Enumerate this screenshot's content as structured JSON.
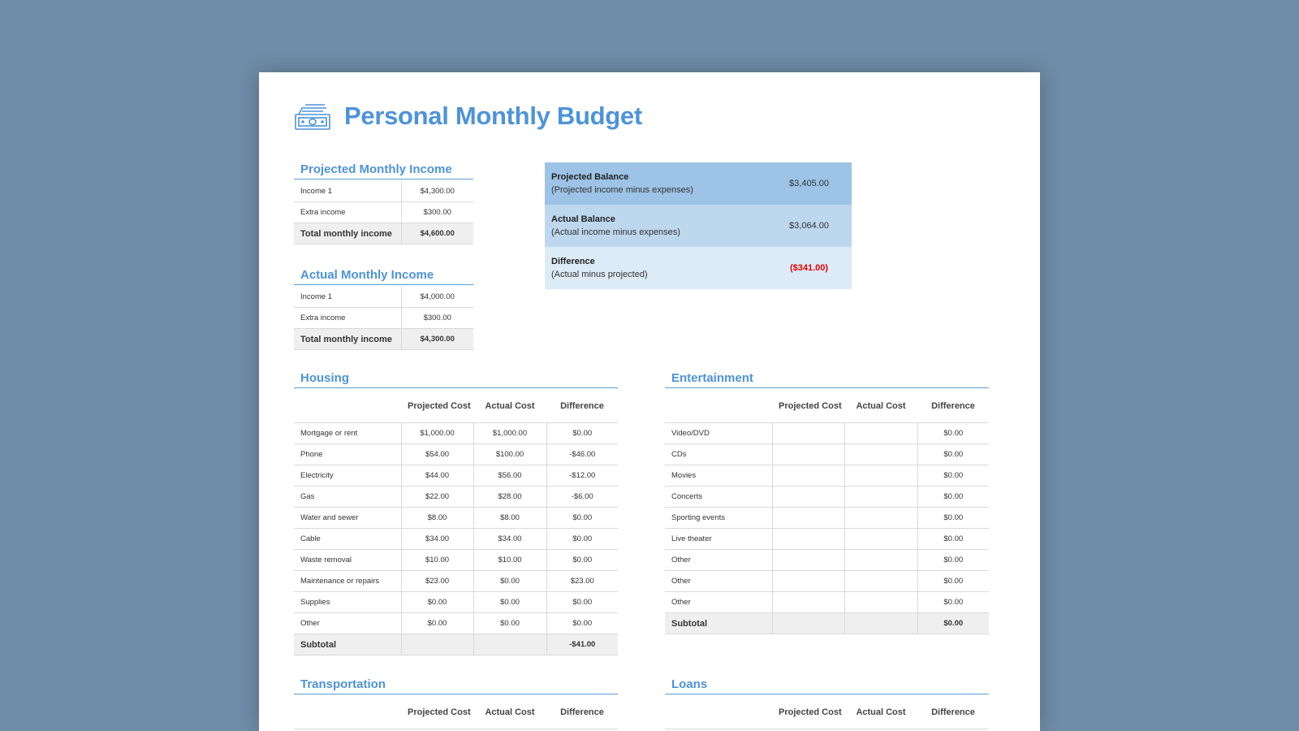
{
  "title": "Personal Monthly Budget",
  "income_tables": [
    {
      "title": "Projected Monthly Income",
      "rows": [
        [
          "Income 1",
          "$4,300.00"
        ],
        [
          "Extra income",
          "$300.00"
        ],
        [
          "Total monthly income",
          "$4,600.00"
        ]
      ]
    },
    {
      "title": "Actual Monthly Income",
      "rows": [
        [
          "Income 1",
          "$4,000.00"
        ],
        [
          "Extra income",
          "$300.00"
        ],
        [
          "Total monthly income",
          "$4,300.00"
        ]
      ]
    }
  ],
  "balance": [
    {
      "label": "Projected Balance",
      "note": "(Projected income minus expenses)",
      "value": "$3,405.00"
    },
    {
      "label": "Actual Balance",
      "note": "(Actual income minus expenses)",
      "value": "$3,064.00"
    },
    {
      "label": "Difference",
      "note": "(Actual minus projected)",
      "value": "($341.00)"
    }
  ],
  "expense_tables": [
    {
      "title": "Housing",
      "headers": [
        null,
        "Projected Cost",
        "Actual Cost",
        "Difference"
      ],
      "rows": [
        [
          "Mortgage or rent",
          "$1,000.00",
          "$1,000.00",
          "$0.00"
        ],
        [
          "Phone",
          "$54.00",
          "$100.00",
          "-$46.00"
        ],
        [
          "Electricity",
          "$44.00",
          "$56.00",
          "-$12.00"
        ],
        [
          "Gas",
          "$22.00",
          "$28.00",
          "-$6.00"
        ],
        [
          "Water and sewer",
          "$8.00",
          "$8.00",
          "$0.00"
        ],
        [
          "Cable",
          "$34.00",
          "$34.00",
          "$0.00"
        ],
        [
          "Waste removal",
          "$10.00",
          "$10.00",
          "$0.00"
        ],
        [
          "Maintenance or repairs",
          "$23.00",
          "$0.00",
          "$23.00"
        ],
        [
          "Supplies",
          "$0.00",
          "$0.00",
          "$0.00"
        ],
        [
          "Other",
          "$0.00",
          "$0.00",
          "$0.00"
        ],
        [
          "Subtotal",
          null,
          null,
          "-$41.00"
        ]
      ]
    },
    {
      "title": "Entertainment",
      "headers": [
        null,
        "Projected Cost",
        "Actual Cost",
        "Difference"
      ],
      "rows": [
        [
          "Video/DVD",
          null,
          null,
          "$0.00"
        ],
        [
          "CDs",
          null,
          null,
          "$0.00"
        ],
        [
          "Movies",
          null,
          null,
          "$0.00"
        ],
        [
          "Concerts",
          null,
          null,
          "$0.00"
        ],
        [
          "Sporting events",
          null,
          null,
          "$0.00"
        ],
        [
          "Live theater",
          null,
          null,
          "$0.00"
        ],
        [
          "Other",
          null,
          null,
          "$0.00"
        ],
        [
          "Other",
          null,
          null,
          "$0.00"
        ],
        [
          "Other",
          null,
          null,
          "$0.00"
        ],
        [
          "Subtotal",
          null,
          null,
          "$0.00"
        ]
      ]
    },
    {
      "title": "Transportation",
      "headers": [
        null,
        "Projected Cost",
        "Actual Cost",
        "Difference"
      ],
      "rows": []
    },
    {
      "title": "Loans",
      "headers": [
        null,
        "Projected Cost",
        "Actual Cost",
        "Difference"
      ],
      "rows": []
    }
  ]
}
